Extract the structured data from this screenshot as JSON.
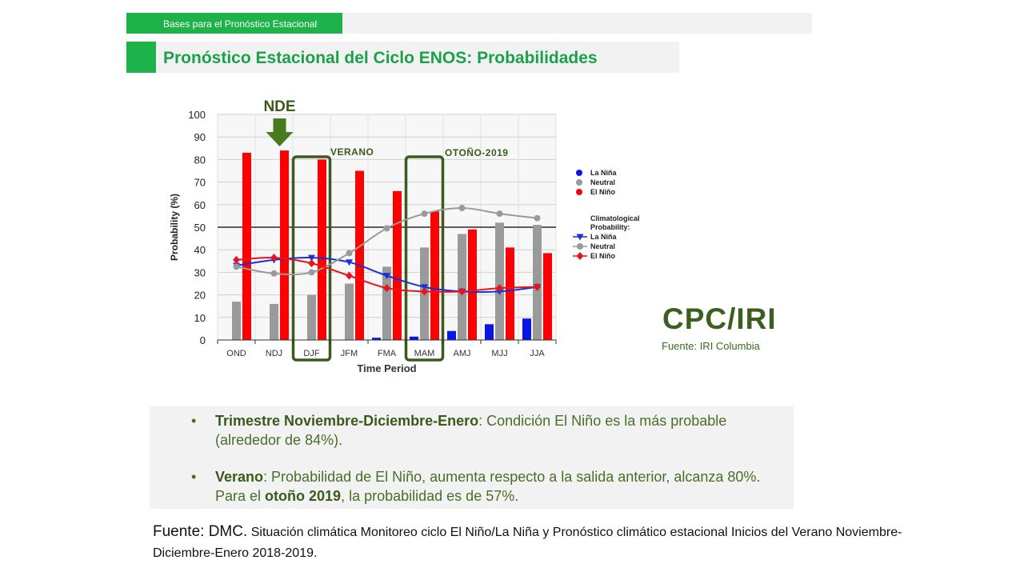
{
  "header": {
    "section": "Bases para el Pronóstico Estacional",
    "title": "Pronóstico Estacional del Ciclo ENOS: Probabilidades"
  },
  "chart_data": {
    "type": "bar",
    "xlabel": "Time Period",
    "ylabel": "Probability (%)",
    "ylim": [
      0,
      100
    ],
    "yticks": [
      0,
      10,
      20,
      30,
      40,
      50,
      60,
      70,
      80,
      90,
      100
    ],
    "categories": [
      "OND",
      "NDJ",
      "DJF",
      "JFM",
      "FMA",
      "MAM",
      "AMJ",
      "MJJ",
      "JJA"
    ],
    "series": [
      {
        "name": "La Niña",
        "color": "#0a16e8",
        "values": [
          0,
          0,
          0,
          0,
          1,
          1.5,
          4,
          7,
          9.5
        ]
      },
      {
        "name": "Neutral",
        "color": "#9a9a9a",
        "values": [
          17,
          16,
          20,
          25,
          32.5,
          41,
          47,
          52,
          51
        ]
      },
      {
        "name": "El Niño",
        "color": "#ff0000",
        "values": [
          83,
          84,
          80,
          75,
          66,
          57,
          49,
          41,
          38.5
        ]
      }
    ],
    "climatology": {
      "title": "Climatological Probability:",
      "series": [
        {
          "name": "La Niña",
          "color": "#1a2fd8",
          "marker": "triangle",
          "values": [
            33,
            35.5,
            36.5,
            34.5,
            28.5,
            23.5,
            21.5,
            21.5,
            23.5
          ]
        },
        {
          "name": "Neutral",
          "color": "#9a9a9a",
          "marker": "circle",
          "values": [
            32.5,
            29.5,
            30,
            38.5,
            49.5,
            56,
            58.5,
            56,
            54
          ]
        },
        {
          "name": "El Niño",
          "color": "#e8141c",
          "marker": "diamond",
          "values": [
            35.5,
            36.5,
            34,
            28.5,
            23,
            21.5,
            21.5,
            23,
            23.5
          ]
        }
      ]
    },
    "reference_line": 50,
    "grid": true,
    "legend_position": "right",
    "annotations": {
      "arrow_label": "NDE",
      "summer_label": "VERANO",
      "autumn_label": "OTOÑO-2019"
    }
  },
  "branding": {
    "logo": "CPC/IRI",
    "source": "Fuente: IRI Columbia"
  },
  "notes": [
    {
      "bold": "Trimestre Noviembre-Diciembre-Enero",
      "text": ": Condición El Niño es la más probable (alrededor de 84%)."
    },
    {
      "bold": "Verano",
      "text": ": Probabilidad de El Niño, aumenta respecto a la salida anterior, alcanza 80%. Para el ",
      "bold2": "otoño 2019",
      "text2": ", la probabilidad es de 57%."
    }
  ],
  "source": {
    "label": "Fuente: DMC.",
    "text": " Situación climática Monitoreo ciclo El Niño/La Niña y Pronóstico climático estacional Inicios del Verano Noviembre-Diciembre-Enero  2018-2019."
  },
  "colors": {
    "brand_green": "#1db34a",
    "dark_green": "#3b5f1f",
    "box_green": "#3d5a1e"
  }
}
